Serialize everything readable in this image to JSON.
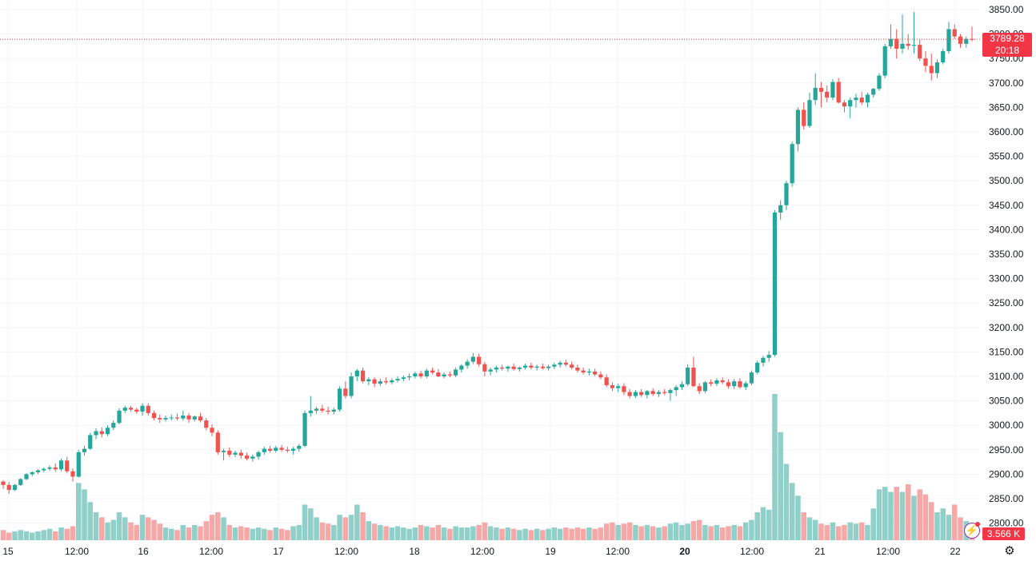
{
  "colors": {
    "up": "#26a69a",
    "down": "#ef5350",
    "up_volume": "#90d0c8",
    "down_volume": "#f5a8a8",
    "grid": "#f0f3fa",
    "text": "#131722",
    "last_price": "#f23645"
  },
  "last_price": {
    "price": "3789.28",
    "countdown": "20:18"
  },
  "volume_label": "3.566 K",
  "icons": {
    "indicator": "lightning-icon",
    "settings": "gear-icon"
  },
  "chart_data": {
    "type": "candlestick",
    "title": "",
    "xlabel": "",
    "ylabel": "",
    "ylim": [
      2780,
      3860
    ],
    "y_ticks": [
      "3850.00",
      "3800.00",
      "3750.00",
      "3700.00",
      "3650.00",
      "3600.00",
      "3550.00",
      "3500.00",
      "3450.00",
      "3400.00",
      "3350.00",
      "3300.00",
      "3250.00",
      "3200.00",
      "3150.00",
      "3100.00",
      "3050.00",
      "3000.00",
      "2950.00",
      "2900.00",
      "2850.00",
      "2800.00"
    ],
    "x_ticks": [
      "15",
      "12:00",
      "16",
      "12:00",
      "17",
      "12:00",
      "18",
      "12:00",
      "19",
      "12:00",
      "20",
      "12:00",
      "21",
      "12:00",
      "22"
    ],
    "x_tick_bold": [
      false,
      false,
      false,
      false,
      false,
      false,
      false,
      false,
      false,
      false,
      true,
      false,
      false,
      false,
      false
    ],
    "grid": true,
    "last_price_line": 3789.28,
    "candles": [
      [
        2885,
        2888,
        2870,
        2878,
        8
      ],
      [
        2878,
        2884,
        2860,
        2868,
        6
      ],
      [
        2868,
        2880,
        2866,
        2878,
        7
      ],
      [
        2878,
        2892,
        2876,
        2890,
        8
      ],
      [
        2890,
        2902,
        2888,
        2900,
        7
      ],
      [
        2900,
        2906,
        2896,
        2904,
        6
      ],
      [
        2904,
        2910,
        2900,
        2908,
        7
      ],
      [
        2908,
        2914,
        2904,
        2911,
        8
      ],
      [
        2911,
        2918,
        2907,
        2914,
        9
      ],
      [
        2914,
        2922,
        2905,
        2910,
        7
      ],
      [
        2910,
        2932,
        2906,
        2928,
        10
      ],
      [
        2928,
        2936,
        2902,
        2906,
        9
      ],
      [
        2906,
        2912,
        2885,
        2895,
        11
      ],
      [
        2895,
        2950,
        2893,
        2945,
        45
      ],
      [
        2945,
        2958,
        2938,
        2952,
        40
      ],
      [
        2952,
        2985,
        2950,
        2980,
        30
      ],
      [
        2980,
        2994,
        2972,
        2988,
        22
      ],
      [
        2988,
        2996,
        2975,
        2982,
        18
      ],
      [
        2982,
        3000,
        2978,
        2995,
        14
      ],
      [
        2995,
        3010,
        2990,
        3005,
        16
      ],
      [
        3005,
        3035,
        3002,
        3030,
        22
      ],
      [
        3030,
        3040,
        3025,
        3036,
        18
      ],
      [
        3036,
        3040,
        3028,
        3032,
        14
      ],
      [
        3032,
        3036,
        3024,
        3028,
        12
      ],
      [
        3028,
        3045,
        3020,
        3040,
        20
      ],
      [
        3040,
        3045,
        3020,
        3025,
        18
      ],
      [
        3025,
        3030,
        3010,
        3015,
        16
      ],
      [
        3015,
        3022,
        3005,
        3012,
        13
      ],
      [
        3012,
        3020,
        3008,
        3015,
        10
      ],
      [
        3015,
        3022,
        3010,
        3016,
        9
      ],
      [
        3016,
        3024,
        3010,
        3014,
        8
      ],
      [
        3014,
        3030,
        3010,
        3020,
        12
      ],
      [
        3020,
        3025,
        3005,
        3012,
        10
      ],
      [
        3012,
        3020,
        3008,
        3018,
        12
      ],
      [
        3018,
        3025,
        3006,
        3010,
        11
      ],
      [
        3010,
        3015,
        2990,
        2995,
        15
      ],
      [
        2995,
        3002,
        2978,
        2985,
        20
      ],
      [
        2985,
        2990,
        2940,
        2945,
        22
      ],
      [
        2945,
        2952,
        2928,
        2948,
        18
      ],
      [
        2948,
        2955,
        2935,
        2940,
        12
      ],
      [
        2940,
        2948,
        2935,
        2944,
        10
      ],
      [
        2944,
        2950,
        2932,
        2938,
        11
      ],
      [
        2938,
        2944,
        2928,
        2932,
        10
      ],
      [
        2932,
        2940,
        2926,
        2936,
        9
      ],
      [
        2936,
        2948,
        2930,
        2945,
        10
      ],
      [
        2945,
        2956,
        2940,
        2952,
        9
      ],
      [
        2952,
        2958,
        2944,
        2948,
        8
      ],
      [
        2948,
        2958,
        2944,
        2954,
        10
      ],
      [
        2954,
        2960,
        2946,
        2950,
        9
      ],
      [
        2950,
        2956,
        2944,
        2948,
        8
      ],
      [
        2948,
        2956,
        2940,
        2952,
        11
      ],
      [
        2952,
        2962,
        2946,
        2958,
        12
      ],
      [
        2958,
        3030,
        2955,
        3025,
        28
      ],
      [
        3025,
        3060,
        3018,
        3030,
        25
      ],
      [
        3030,
        3038,
        3024,
        3034,
        18
      ],
      [
        3034,
        3042,
        3026,
        3030,
        14
      ],
      [
        3030,
        3038,
        3022,
        3028,
        13
      ],
      [
        3028,
        3036,
        3022,
        3032,
        12
      ],
      [
        3032,
        3080,
        3028,
        3075,
        20
      ],
      [
        3075,
        3090,
        3055,
        3060,
        18
      ],
      [
        3060,
        3108,
        3055,
        3100,
        20
      ],
      [
        3100,
        3115,
        3090,
        3112,
        28
      ],
      [
        3112,
        3118,
        3086,
        3090,
        22
      ],
      [
        3090,
        3098,
        3082,
        3094,
        15
      ],
      [
        3094,
        3098,
        3078,
        3085,
        13
      ],
      [
        3085,
        3095,
        3080,
        3090,
        12
      ],
      [
        3090,
        3098,
        3084,
        3088,
        11
      ],
      [
        3088,
        3096,
        3084,
        3092,
        10
      ],
      [
        3092,
        3100,
        3088,
        3095,
        11
      ],
      [
        3095,
        3102,
        3090,
        3098,
        10
      ],
      [
        3098,
        3106,
        3092,
        3100,
        9
      ],
      [
        3100,
        3110,
        3096,
        3106,
        10
      ],
      [
        3106,
        3112,
        3096,
        3100,
        12
      ],
      [
        3100,
        3116,
        3096,
        3112,
        11
      ],
      [
        3112,
        3118,
        3104,
        3108,
        10
      ],
      [
        3108,
        3115,
        3098,
        3100,
        12
      ],
      [
        3100,
        3108,
        3096,
        3104,
        10
      ],
      [
        3104,
        3110,
        3098,
        3102,
        9
      ],
      [
        3102,
        3118,
        3098,
        3114,
        11
      ],
      [
        3114,
        3125,
        3108,
        3122,
        10
      ],
      [
        3122,
        3135,
        3116,
        3130,
        10
      ],
      [
        3130,
        3148,
        3125,
        3140,
        11
      ],
      [
        3140,
        3146,
        3120,
        3125,
        12
      ],
      [
        3125,
        3130,
        3100,
        3110,
        14
      ],
      [
        3110,
        3118,
        3102,
        3114,
        11
      ],
      [
        3114,
        3122,
        3108,
        3118,
        10
      ],
      [
        3118,
        3124,
        3112,
        3116,
        9
      ],
      [
        3116,
        3122,
        3110,
        3120,
        10
      ],
      [
        3120,
        3126,
        3112,
        3115,
        9
      ],
      [
        3115,
        3120,
        3110,
        3118,
        8
      ],
      [
        3118,
        3126,
        3114,
        3122,
        9
      ],
      [
        3122,
        3128,
        3114,
        3118,
        8
      ],
      [
        3118,
        3124,
        3112,
        3120,
        9
      ],
      [
        3120,
        3126,
        3114,
        3117,
        8
      ],
      [
        3117,
        3124,
        3112,
        3120,
        9
      ],
      [
        3120,
        3128,
        3115,
        3124,
        10
      ],
      [
        3124,
        3132,
        3118,
        3128,
        9
      ],
      [
        3128,
        3134,
        3120,
        3124,
        10
      ],
      [
        3124,
        3130,
        3114,
        3118,
        9
      ],
      [
        3118,
        3124,
        3108,
        3112,
        10
      ],
      [
        3112,
        3118,
        3104,
        3108,
        9
      ],
      [
        3108,
        3116,
        3102,
        3110,
        10
      ],
      [
        3110,
        3116,
        3100,
        3104,
        9
      ],
      [
        3104,
        3110,
        3094,
        3098,
        10
      ],
      [
        3098,
        3104,
        3078,
        3082,
        13
      ],
      [
        3082,
        3088,
        3070,
        3076,
        14
      ],
      [
        3076,
        3085,
        3068,
        3080,
        12
      ],
      [
        3080,
        3086,
        3062,
        3068,
        13
      ],
      [
        3068,
        3074,
        3055,
        3060,
        14
      ],
      [
        3060,
        3072,
        3056,
        3068,
        12
      ],
      [
        3068,
        3074,
        3058,
        3062,
        11
      ],
      [
        3062,
        3072,
        3055,
        3070,
        12
      ],
      [
        3070,
        3076,
        3060,
        3064,
        11
      ],
      [
        3064,
        3072,
        3058,
        3068,
        10
      ],
      [
        3068,
        3074,
        3062,
        3066,
        11
      ],
      [
        3066,
        3075,
        3050,
        3072,
        13
      ],
      [
        3072,
        3082,
        3060,
        3078,
        14
      ],
      [
        3078,
        3090,
        3072,
        3084,
        12
      ],
      [
        3084,
        3125,
        3080,
        3118,
        13
      ],
      [
        3118,
        3140,
        3078,
        3080,
        15
      ],
      [
        3080,
        3086,
        3064,
        3070,
        16
      ],
      [
        3070,
        3090,
        3066,
        3088,
        12
      ],
      [
        3088,
        3094,
        3080,
        3085,
        11
      ],
      [
        3085,
        3096,
        3080,
        3092,
        12
      ],
      [
        3092,
        3098,
        3084,
        3088,
        10
      ],
      [
        3088,
        3094,
        3075,
        3080,
        11
      ],
      [
        3080,
        3095,
        3074,
        3090,
        12
      ],
      [
        3090,
        3096,
        3075,
        3078,
        11
      ],
      [
        3078,
        3090,
        3072,
        3086,
        14
      ],
      [
        3086,
        3112,
        3082,
        3108,
        16
      ],
      [
        3108,
        3132,
        3104,
        3128,
        22
      ],
      [
        3128,
        3142,
        3120,
        3138,
        26
      ],
      [
        3138,
        3152,
        3130,
        3144,
        24
      ],
      [
        3144,
        3440,
        3140,
        3435,
        115
      ],
      [
        3435,
        3460,
        3420,
        3450,
        85
      ],
      [
        3450,
        3500,
        3440,
        3495,
        60
      ],
      [
        3495,
        3580,
        3488,
        3575,
        45
      ],
      [
        3575,
        3650,
        3560,
        3645,
        35
      ],
      [
        3645,
        3660,
        3605,
        3612,
        22
      ],
      [
        3612,
        3680,
        3608,
        3665,
        18
      ],
      [
        3665,
        3720,
        3655,
        3690,
        16
      ],
      [
        3690,
        3702,
        3650,
        3682,
        13
      ],
      [
        3682,
        3695,
        3660,
        3670,
        12
      ],
      [
        3670,
        3708,
        3665,
        3702,
        14
      ],
      [
        3702,
        3710,
        3658,
        3660,
        11
      ],
      [
        3660,
        3665,
        3640,
        3652,
        12
      ],
      [
        3652,
        3670,
        3628,
        3665,
        14
      ],
      [
        3665,
        3678,
        3650,
        3670,
        13
      ],
      [
        3670,
        3682,
        3655,
        3660,
        14
      ],
      [
        3660,
        3680,
        3650,
        3676,
        12
      ],
      [
        3676,
        3690,
        3670,
        3688,
        25
      ],
      [
        3688,
        3720,
        3684,
        3715,
        40
      ],
      [
        3715,
        3780,
        3710,
        3775,
        42
      ],
      [
        3775,
        3820,
        3770,
        3790,
        38
      ],
      [
        3790,
        3810,
        3750,
        3770,
        42
      ],
      [
        3770,
        3840,
        3760,
        3780,
        38
      ],
      [
        3780,
        3800,
        3768,
        3776,
        44
      ],
      [
        3776,
        3845,
        3760,
        3778,
        35
      ],
      [
        3778,
        3790,
        3745,
        3750,
        40
      ],
      [
        3750,
        3765,
        3722,
        3735,
        36
      ],
      [
        3735,
        3760,
        3705,
        3720,
        30
      ],
      [
        3720,
        3748,
        3710,
        3742,
        22
      ],
      [
        3742,
        3770,
        3738,
        3765,
        25
      ],
      [
        3765,
        3825,
        3760,
        3810,
        20
      ],
      [
        3810,
        3820,
        3790,
        3795,
        28
      ],
      [
        3795,
        3800,
        3772,
        3780,
        18
      ],
      [
        3780,
        3795,
        3772,
        3790,
        15
      ],
      [
        3790,
        3815,
        3785,
        3789.28,
        12
      ]
    ]
  }
}
